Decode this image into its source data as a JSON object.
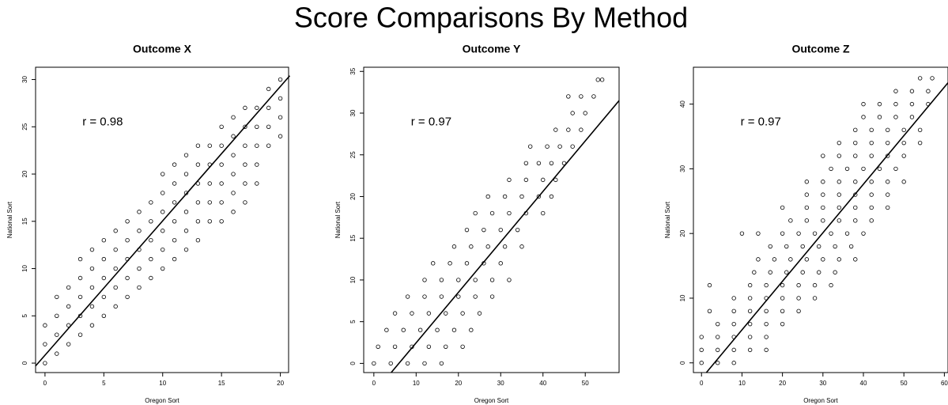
{
  "title": "Score Comparisons By Method",
  "chart_data": [
    {
      "type": "scatter",
      "title": "Outcome X",
      "xlabel": "Oregon Sort",
      "ylabel": "National Sort",
      "annotation": "r = 0.98",
      "color": "#000000",
      "x": [
        0,
        0,
        0,
        1,
        1,
        1,
        1,
        2,
        2,
        2,
        2,
        3,
        3,
        3,
        3,
        3,
        4,
        4,
        4,
        4,
        4,
        5,
        5,
        5,
        5,
        5,
        6,
        6,
        6,
        6,
        6,
        7,
        7,
        7,
        7,
        7,
        8,
        8,
        8,
        8,
        8,
        9,
        9,
        9,
        9,
        9,
        10,
        10,
        10,
        10,
        10,
        10,
        11,
        11,
        11,
        11,
        11,
        11,
        12,
        12,
        12,
        12,
        12,
        12,
        13,
        13,
        13,
        13,
        13,
        13,
        14,
        14,
        14,
        14,
        14,
        15,
        15,
        15,
        15,
        15,
        15,
        16,
        16,
        16,
        16,
        16,
        16,
        17,
        17,
        17,
        17,
        17,
        17,
        18,
        18,
        18,
        18,
        18,
        19,
        19,
        19,
        19,
        20,
        20,
        20,
        20
      ],
      "values": [
        0,
        2,
        4,
        1,
        3,
        5,
        7,
        2,
        4,
        6,
        8,
        3,
        5,
        7,
        9,
        11,
        4,
        6,
        8,
        10,
        12,
        5,
        7,
        9,
        11,
        13,
        6,
        8,
        10,
        12,
        14,
        7,
        9,
        11,
        13,
        15,
        8,
        10,
        12,
        14,
        16,
        9,
        11,
        13,
        15,
        17,
        10,
        12,
        14,
        16,
        18,
        20,
        11,
        13,
        15,
        17,
        19,
        21,
        12,
        14,
        16,
        18,
        20,
        22,
        13,
        15,
        17,
        19,
        21,
        23,
        15,
        17,
        19,
        21,
        23,
        15,
        17,
        19,
        21,
        23,
        25,
        16,
        18,
        20,
        22,
        24,
        26,
        17,
        19,
        21,
        23,
        25,
        27,
        19,
        21,
        23,
        25,
        27,
        23,
        25,
        27,
        29,
        24,
        26,
        28,
        30
      ],
      "fit": {
        "x": [
          -0.8,
          20.8
        ],
        "values": [
          -0.3,
          30.4
        ]
      },
      "xlim": [
        -0.8,
        20.7
      ],
      "ylim": [
        -1.0,
        31.3
      ],
      "xticks": [
        0,
        5,
        10,
        15,
        20
      ],
      "yticks": [
        0,
        5,
        10,
        15,
        20,
        25,
        30
      ]
    },
    {
      "type": "scatter",
      "title": "Outcome Y",
      "xlabel": "Oregon Sort",
      "ylabel": "National Sort",
      "annotation": "r = 0.97",
      "color": "#000000",
      "x": [
        0,
        4,
        8,
        12,
        16,
        1,
        5,
        9,
        13,
        17,
        21,
        3,
        7,
        11,
        15,
        19,
        23,
        5,
        9,
        13,
        17,
        21,
        25,
        8,
        12,
        16,
        20,
        24,
        28,
        12,
        16,
        20,
        24,
        28,
        32,
        14,
        18,
        22,
        26,
        30,
        19,
        23,
        27,
        31,
        35,
        22,
        26,
        30,
        34,
        24,
        28,
        32,
        36,
        40,
        27,
        31,
        35,
        39,
        42,
        32,
        36,
        40,
        43,
        36,
        39,
        42,
        45,
        37,
        41,
        44,
        47,
        43,
        46,
        49,
        47,
        50,
        46,
        49,
        52,
        53,
        54
      ],
      "values": [
        0,
        0,
        0,
        0,
        0,
        2,
        2,
        2,
        2,
        2,
        2,
        4,
        4,
        4,
        4,
        4,
        4,
        6,
        6,
        6,
        6,
        6,
        6,
        8,
        8,
        8,
        8,
        8,
        8,
        10,
        10,
        10,
        10,
        10,
        10,
        12,
        12,
        12,
        12,
        12,
        14,
        14,
        14,
        14,
        14,
        16,
        16,
        16,
        16,
        18,
        18,
        18,
        18,
        18,
        20,
        20,
        20,
        20,
        20,
        22,
        22,
        22,
        22,
        24,
        24,
        24,
        24,
        26,
        26,
        26,
        26,
        28,
        28,
        28,
        30,
        30,
        32,
        32,
        32,
        34,
        34
      ],
      "fit": {
        "x": [
          4.1,
          58
        ],
        "values": [
          -1.1,
          31.5
        ]
      },
      "xlim": [
        -2.4,
        58
      ],
      "ylim": [
        -1.1,
        35.5
      ],
      "xticks": [
        0,
        10,
        20,
        30,
        40,
        50
      ],
      "yticks": [
        0,
        5,
        10,
        15,
        20,
        25,
        30,
        35
      ]
    },
    {
      "type": "scatter",
      "title": "Outcome Z",
      "xlabel": "Oregon Sort",
      "ylabel": "National Sort",
      "annotation": "r = 0.97",
      "color": "#000000",
      "x": [
        0,
        4,
        8,
        0,
        4,
        8,
        12,
        16,
        0,
        4,
        8,
        12,
        16,
        4,
        8,
        12,
        16,
        20,
        2,
        8,
        12,
        16,
        20,
        24,
        8,
        12,
        16,
        20,
        24,
        28,
        2,
        12,
        16,
        20,
        24,
        28,
        32,
        13,
        17,
        21,
        25,
        29,
        33,
        14,
        18,
        22,
        26,
        30,
        34,
        38,
        17,
        21,
        25,
        29,
        33,
        37,
        10,
        14,
        20,
        24,
        28,
        32,
        36,
        40,
        22,
        26,
        30,
        34,
        38,
        42,
        20,
        26,
        30,
        34,
        38,
        42,
        46,
        26,
        30,
        34,
        38,
        42,
        46,
        26,
        30,
        34,
        38,
        42,
        46,
        50,
        32,
        36,
        40,
        44,
        48,
        30,
        34,
        38,
        42,
        46,
        50,
        34,
        38,
        42,
        46,
        50,
        54,
        38,
        42,
        46,
        50,
        54,
        40,
        44,
        48,
        52,
        40,
        44,
        48,
        52,
        56,
        48,
        52,
        56,
        54,
        57
      ],
      "values": [
        0,
        0,
        0,
        2,
        2,
        2,
        2,
        2,
        4,
        4,
        4,
        4,
        4,
        6,
        6,
        6,
        6,
        6,
        8,
        8,
        8,
        8,
        8,
        8,
        10,
        10,
        10,
        10,
        10,
        10,
        12,
        12,
        12,
        12,
        12,
        12,
        12,
        14,
        14,
        14,
        14,
        14,
        14,
        16,
        16,
        16,
        16,
        16,
        16,
        16,
        18,
        18,
        18,
        18,
        18,
        18,
        20,
        20,
        20,
        20,
        20,
        20,
        20,
        20,
        22,
        22,
        22,
        22,
        22,
        22,
        24,
        24,
        24,
        24,
        24,
        24,
        24,
        26,
        26,
        26,
        26,
        26,
        26,
        28,
        28,
        28,
        28,
        28,
        28,
        28,
        30,
        30,
        30,
        30,
        30,
        32,
        32,
        32,
        32,
        32,
        32,
        34,
        34,
        34,
        34,
        34,
        34,
        36,
        36,
        36,
        36,
        36,
        38,
        38,
        38,
        38,
        40,
        40,
        40,
        40,
        40,
        42,
        42,
        42,
        44,
        44
      ],
      "fit": {
        "x": [
          1.2,
          60.9
        ],
        "values": [
          -1.5,
          43.3
        ]
      },
      "xlim": [
        -2,
        60.9
      ],
      "ylim": [
        -1.5,
        45.7
      ],
      "xticks": [
        0,
        10,
        20,
        30,
        40,
        50,
        60
      ],
      "yticks": [
        0,
        10,
        20,
        30,
        40
      ]
    }
  ]
}
